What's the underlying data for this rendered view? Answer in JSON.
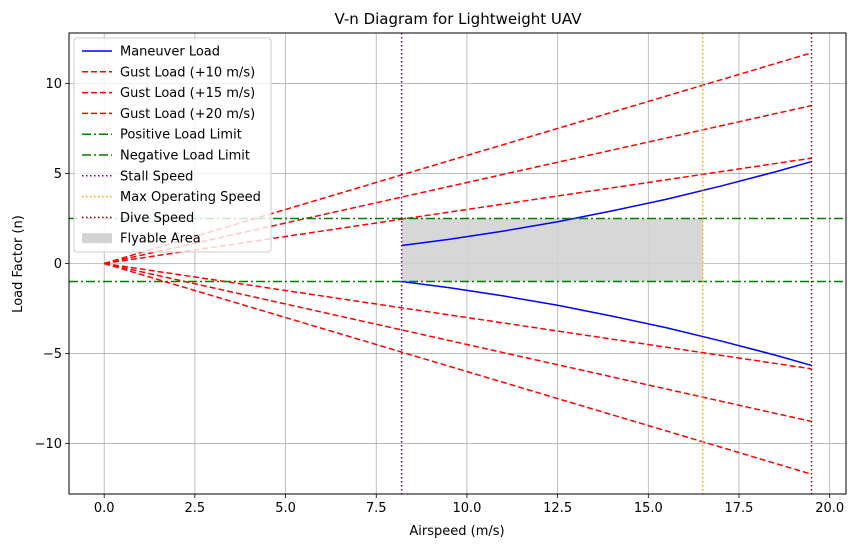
{
  "chart_data": {
    "type": "line",
    "title": "V-n Diagram for Lightweight UAV",
    "xlabel": "Airspeed (m/s)",
    "ylabel": "Load Factor (n)",
    "xlim": [
      -0.97,
      20.45
    ],
    "ylim": [
      -12.8,
      12.8
    ],
    "xticks": [
      0.0,
      2.5,
      5.0,
      7.5,
      10.0,
      12.5,
      15.0,
      17.5,
      20.0
    ],
    "xtick_labels": [
      "0.0",
      "2.5",
      "5.0",
      "7.5",
      "10.0",
      "12.5",
      "15.0",
      "17.5",
      "20.0"
    ],
    "yticks": [
      -10,
      -5,
      0,
      5,
      10
    ],
    "ytick_labels": [
      "−10",
      "−5",
      "0",
      "5",
      "10"
    ],
    "grid": true,
    "legend_position": "upper-left",
    "stall_speed": 8.2,
    "max_operating_speed": 16.5,
    "dive_speed": 19.5,
    "positive_load_limit": 2.5,
    "negative_load_limit": -1.0,
    "series": [
      {
        "name": "Maneuver Load",
        "style": "solid",
        "color": "#0000ff",
        "x": [
          8.2,
          9.5,
          11.0,
          12.5,
          14.0,
          15.5,
          17.0,
          18.5,
          19.5
        ],
        "y": [
          1.0,
          1.34,
          1.8,
          2.32,
          2.92,
          3.57,
          4.3,
          5.09,
          5.66
        ],
        "mirror": true
      },
      {
        "name": "Gust Load (+10 m/s)",
        "style": "dashed",
        "color": "#ff0000",
        "x": [
          0,
          19.5
        ],
        "y": [
          0,
          5.85
        ],
        "mirror": true
      },
      {
        "name": "Gust Load (+15 m/s)",
        "style": "dashed",
        "color": "#ff0000",
        "x": [
          0,
          19.5
        ],
        "y": [
          0,
          8.77
        ],
        "mirror": true
      },
      {
        "name": "Gust Load (+20 m/s)",
        "style": "dashed",
        "color": "#ff0000",
        "x": [
          0,
          19.5
        ],
        "y": [
          0,
          11.7
        ],
        "mirror": true
      },
      {
        "name": "Positive Load Limit",
        "style": "dashdot",
        "color": "#008000",
        "hline": 2.5
      },
      {
        "name": "Negative Load Limit",
        "style": "dashdot",
        "color": "#008000",
        "hline": -1.0
      },
      {
        "name": "Stall Speed",
        "style": "dotted",
        "color": "#800080",
        "vline": 8.2
      },
      {
        "name": "Max Operating Speed",
        "style": "dotted",
        "color": "#ffa500",
        "vline": 16.5
      },
      {
        "name": "Dive Speed",
        "style": "dotted",
        "color": "#8b0000",
        "vline": 19.5
      },
      {
        "name": "Flyable Area",
        "style": "fill",
        "color": "#d3d3d3",
        "x_range": [
          8.2,
          16.5
        ],
        "y_range": [
          -1.0,
          2.5
        ]
      }
    ]
  }
}
